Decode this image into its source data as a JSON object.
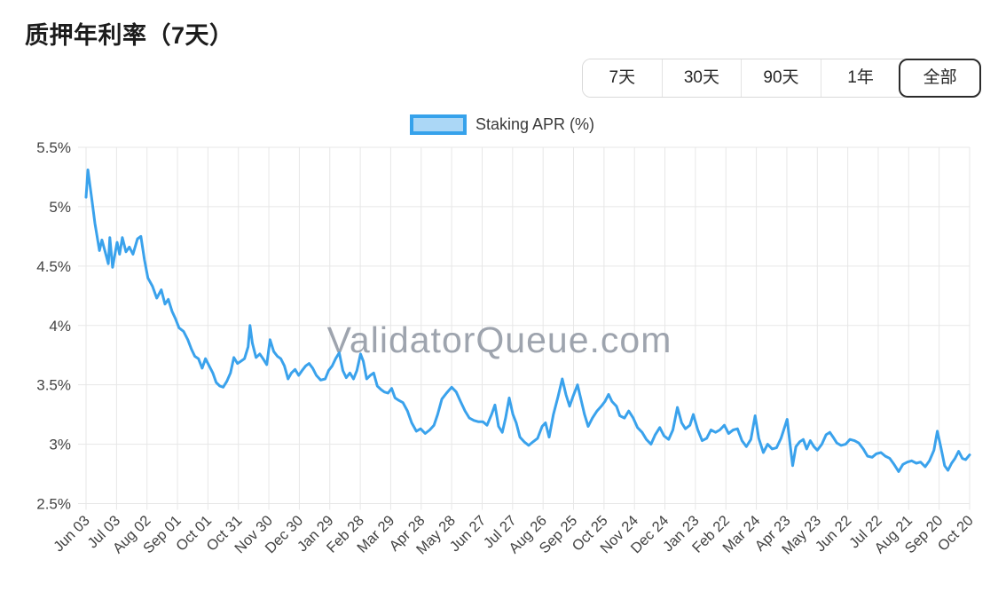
{
  "header": {
    "title": "质押年利率（7天）"
  },
  "controls": {
    "range_buttons": [
      {
        "label": "7天",
        "selected": false
      },
      {
        "label": "30天",
        "selected": false
      },
      {
        "label": "90天",
        "selected": false
      },
      {
        "label": "1年",
        "selected": false
      },
      {
        "label": "全部",
        "selected": true
      }
    ]
  },
  "legend": {
    "label": "Staking APR (%)",
    "swatch_border_color": "#36a2eb",
    "swatch_fill_color": "#abd7f6"
  },
  "watermark": "ValidatorQueue.com",
  "chart_data": {
    "type": "line",
    "title": "质押年利率（7天）",
    "series_name": "Staking APR (%)",
    "unit": "%",
    "line_color": "#3aa2ec",
    "grid": true,
    "legend_position": "top",
    "ylim": [
      2.5,
      5.5
    ],
    "y_tick_labels": [
      "5.5%",
      "5%",
      "4.5%",
      "4%",
      "3.5%",
      "3%",
      "2.5%"
    ],
    "x_tick_interval_days": 30,
    "x_tick_labels": [
      "Jun 03",
      "Jul 03",
      "Aug 02",
      "Sep 01",
      "Oct 01",
      "Oct 31",
      "Nov 30",
      "Dec 30",
      "Jan 29",
      "Feb 28",
      "Mar 29",
      "Apr 28",
      "May 28",
      "Jun 27",
      "Jul 27",
      "Aug 26",
      "Sep 25",
      "Oct 25",
      "Nov 24",
      "Dec 24",
      "Jan 23",
      "Feb 22",
      "Mar 24",
      "Apr 23",
      "May 23",
      "Jun 22",
      "Jul 22",
      "Aug 21",
      "Sep 20",
      "Oct 20"
    ],
    "points_format": "[x_in_tick_units_0_to_29, staking_apr_percent]",
    "points": [
      [
        0,
        5.08
      ],
      [
        0.06,
        5.31
      ],
      [
        0.2,
        5.04
      ],
      [
        0.29,
        4.86
      ],
      [
        0.44,
        4.63
      ],
      [
        0.52,
        4.72
      ],
      [
        0.67,
        4.58
      ],
      [
        0.73,
        4.52
      ],
      [
        0.78,
        4.74
      ],
      [
        0.87,
        4.49
      ],
      [
        1.02,
        4.7
      ],
      [
        1.1,
        4.6
      ],
      [
        1.19,
        4.74
      ],
      [
        1.31,
        4.62
      ],
      [
        1.42,
        4.66
      ],
      [
        1.54,
        4.6
      ],
      [
        1.69,
        4.73
      ],
      [
        1.8,
        4.75
      ],
      [
        1.92,
        4.55
      ],
      [
        2.03,
        4.4
      ],
      [
        2.18,
        4.33
      ],
      [
        2.32,
        4.23
      ],
      [
        2.47,
        4.3
      ],
      [
        2.59,
        4.18
      ],
      [
        2.7,
        4.22
      ],
      [
        2.82,
        4.12
      ],
      [
        2.93,
        4.06
      ],
      [
        3.05,
        3.98
      ],
      [
        3.2,
        3.95
      ],
      [
        3.34,
        3.88
      ],
      [
        3.46,
        3.8
      ],
      [
        3.57,
        3.74
      ],
      [
        3.69,
        3.72
      ],
      [
        3.81,
        3.64
      ],
      [
        3.92,
        3.72
      ],
      [
        4.04,
        3.66
      ],
      [
        4.16,
        3.6
      ],
      [
        4.27,
        3.52
      ],
      [
        4.39,
        3.49
      ],
      [
        4.5,
        3.48
      ],
      [
        4.62,
        3.53
      ],
      [
        4.74,
        3.6
      ],
      [
        4.85,
        3.73
      ],
      [
        4.97,
        3.68
      ],
      [
        5.09,
        3.7
      ],
      [
        5.2,
        3.72
      ],
      [
        5.32,
        3.82
      ],
      [
        5.38,
        4.0
      ],
      [
        5.46,
        3.85
      ],
      [
        5.58,
        3.73
      ],
      [
        5.7,
        3.76
      ],
      [
        5.81,
        3.72
      ],
      [
        5.93,
        3.67
      ],
      [
        6.04,
        3.88
      ],
      [
        6.16,
        3.78
      ],
      [
        6.28,
        3.74
      ],
      [
        6.39,
        3.72
      ],
      [
        6.51,
        3.66
      ],
      [
        6.63,
        3.55
      ],
      [
        6.74,
        3.6
      ],
      [
        6.86,
        3.63
      ],
      [
        6.98,
        3.58
      ],
      [
        7.09,
        3.62
      ],
      [
        7.21,
        3.66
      ],
      [
        7.32,
        3.68
      ],
      [
        7.44,
        3.64
      ],
      [
        7.56,
        3.58
      ],
      [
        7.7,
        3.54
      ],
      [
        7.85,
        3.55
      ],
      [
        7.96,
        3.62
      ],
      [
        8.08,
        3.66
      ],
      [
        8.19,
        3.72
      ],
      [
        8.31,
        3.77
      ],
      [
        8.43,
        3.62
      ],
      [
        8.54,
        3.56
      ],
      [
        8.66,
        3.6
      ],
      [
        8.78,
        3.55
      ],
      [
        8.89,
        3.62
      ],
      [
        9.01,
        3.76
      ],
      [
        9.1,
        3.7
      ],
      [
        9.21,
        3.55
      ],
      [
        9.33,
        3.58
      ],
      [
        9.44,
        3.6
      ],
      [
        9.56,
        3.49
      ],
      [
        9.68,
        3.46
      ],
      [
        9.79,
        3.44
      ],
      [
        9.91,
        3.43
      ],
      [
        10.03,
        3.47
      ],
      [
        10.14,
        3.39
      ],
      [
        10.26,
        3.37
      ],
      [
        10.4,
        3.35
      ],
      [
        10.55,
        3.28
      ],
      [
        10.69,
        3.18
      ],
      [
        10.84,
        3.11
      ],
      [
        10.98,
        3.13
      ],
      [
        11.13,
        3.09
      ],
      [
        11.28,
        3.12
      ],
      [
        11.42,
        3.16
      ],
      [
        11.54,
        3.25
      ],
      [
        11.68,
        3.38
      ],
      [
        11.83,
        3.43
      ],
      [
        12,
        3.48
      ],
      [
        12.15,
        3.44
      ],
      [
        12.29,
        3.36
      ],
      [
        12.44,
        3.28
      ],
      [
        12.58,
        3.22
      ],
      [
        12.73,
        3.2
      ],
      [
        12.87,
        3.19
      ],
      [
        13.02,
        3.19
      ],
      [
        13.16,
        3.16
      ],
      [
        13.31,
        3.25
      ],
      [
        13.42,
        3.33
      ],
      [
        13.54,
        3.15
      ],
      [
        13.66,
        3.1
      ],
      [
        13.77,
        3.22
      ],
      [
        13.89,
        3.39
      ],
      [
        14.01,
        3.25
      ],
      [
        14.12,
        3.18
      ],
      [
        14.24,
        3.06
      ],
      [
        14.38,
        3.02
      ],
      [
        14.53,
        2.99
      ],
      [
        14.67,
        3.02
      ],
      [
        14.82,
        3.05
      ],
      [
        14.97,
        3.15
      ],
      [
        15.08,
        3.18
      ],
      [
        15.2,
        3.06
      ],
      [
        15.34,
        3.25
      ],
      [
        15.49,
        3.4
      ],
      [
        15.63,
        3.55
      ],
      [
        15.75,
        3.42
      ],
      [
        15.87,
        3.32
      ],
      [
        15.98,
        3.4
      ],
      [
        16.13,
        3.5
      ],
      [
        16.24,
        3.38
      ],
      [
        16.36,
        3.25
      ],
      [
        16.48,
        3.15
      ],
      [
        16.62,
        3.22
      ],
      [
        16.77,
        3.28
      ],
      [
        16.91,
        3.32
      ],
      [
        17.03,
        3.36
      ],
      [
        17.15,
        3.42
      ],
      [
        17.26,
        3.36
      ],
      [
        17.41,
        3.32
      ],
      [
        17.52,
        3.24
      ],
      [
        17.67,
        3.22
      ],
      [
        17.81,
        3.28
      ],
      [
        17.96,
        3.22
      ],
      [
        18.1,
        3.14
      ],
      [
        18.25,
        3.1
      ],
      [
        18.39,
        3.04
      ],
      [
        18.54,
        3.0
      ],
      [
        18.68,
        3.08
      ],
      [
        18.83,
        3.14
      ],
      [
        18.97,
        3.07
      ],
      [
        19.12,
        3.04
      ],
      [
        19.26,
        3.12
      ],
      [
        19.41,
        3.31
      ],
      [
        19.55,
        3.18
      ],
      [
        19.67,
        3.13
      ],
      [
        19.82,
        3.16
      ],
      [
        19.93,
        3.25
      ],
      [
        20.08,
        3.12
      ],
      [
        20.22,
        3.03
      ],
      [
        20.37,
        3.05
      ],
      [
        20.51,
        3.12
      ],
      [
        20.66,
        3.1
      ],
      [
        20.8,
        3.12
      ],
      [
        20.95,
        3.16
      ],
      [
        21.09,
        3.09
      ],
      [
        21.24,
        3.12
      ],
      [
        21.38,
        3.13
      ],
      [
        21.53,
        3.03
      ],
      [
        21.67,
        2.98
      ],
      [
        21.82,
        3.04
      ],
      [
        21.96,
        3.24
      ],
      [
        22.08,
        3.05
      ],
      [
        22.23,
        2.93
      ],
      [
        22.37,
        3.0
      ],
      [
        22.52,
        2.96
      ],
      [
        22.66,
        2.97
      ],
      [
        22.81,
        3.05
      ],
      [
        23.01,
        3.21
      ],
      [
        23.13,
        2.95
      ],
      [
        23.19,
        2.82
      ],
      [
        23.3,
        2.98
      ],
      [
        23.42,
        3.02
      ],
      [
        23.54,
        3.04
      ],
      [
        23.65,
        2.96
      ],
      [
        23.77,
        3.03
      ],
      [
        23.89,
        2.98
      ],
      [
        24.0,
        2.95
      ],
      [
        24.15,
        3.0
      ],
      [
        24.29,
        3.08
      ],
      [
        24.41,
        3.1
      ],
      [
        24.52,
        3.06
      ],
      [
        24.64,
        3.01
      ],
      [
        24.78,
        2.99
      ],
      [
        24.93,
        3.0
      ],
      [
        25.07,
        3.04
      ],
      [
        25.22,
        3.03
      ],
      [
        25.36,
        3.01
      ],
      [
        25.51,
        2.96
      ],
      [
        25.65,
        2.9
      ],
      [
        25.8,
        2.89
      ],
      [
        25.94,
        2.92
      ],
      [
        26.09,
        2.93
      ],
      [
        26.23,
        2.9
      ],
      [
        26.38,
        2.88
      ],
      [
        26.52,
        2.83
      ],
      [
        26.67,
        2.77
      ],
      [
        26.81,
        2.83
      ],
      [
        26.96,
        2.85
      ],
      [
        27.1,
        2.86
      ],
      [
        27.25,
        2.84
      ],
      [
        27.39,
        2.85
      ],
      [
        27.54,
        2.81
      ],
      [
        27.68,
        2.86
      ],
      [
        27.83,
        2.95
      ],
      [
        27.94,
        3.11
      ],
      [
        28.06,
        2.97
      ],
      [
        28.18,
        2.82
      ],
      [
        28.29,
        2.78
      ],
      [
        28.41,
        2.84
      ],
      [
        28.52,
        2.88
      ],
      [
        28.64,
        2.94
      ],
      [
        28.76,
        2.88
      ],
      [
        28.87,
        2.87
      ],
      [
        29.0,
        2.91
      ]
    ]
  }
}
